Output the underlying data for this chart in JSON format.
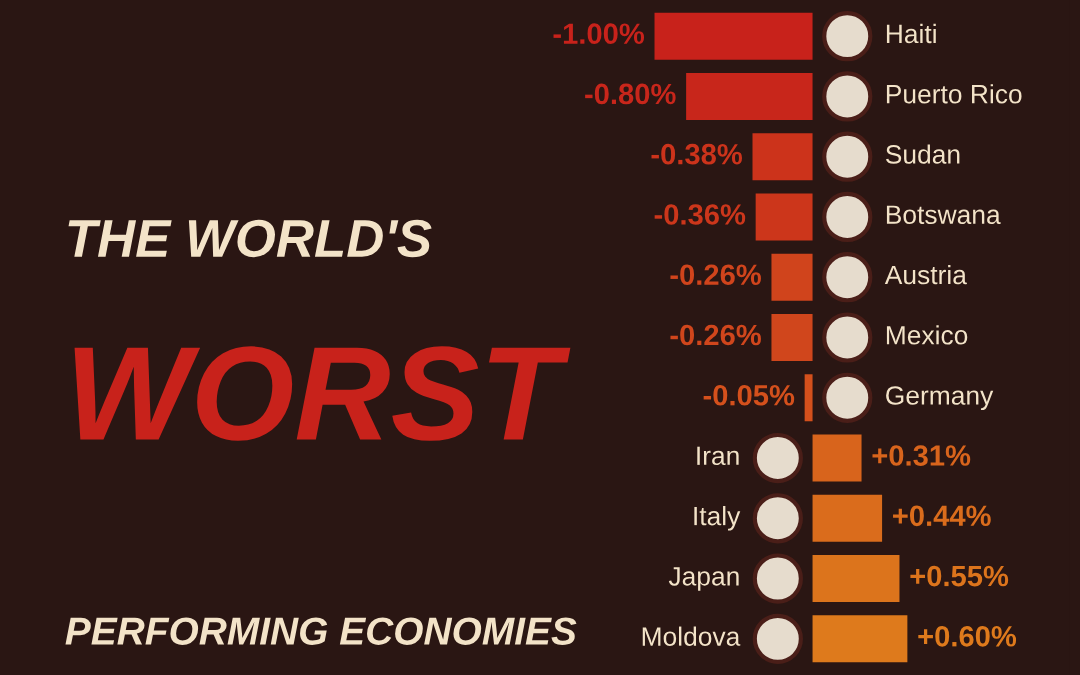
{
  "chart_data": {
    "type": "bar",
    "orientation": "horizontal",
    "title": "THE WORLD'S\nWORST\nPERFORMING ECONOMIES",
    "categories": [
      "Haiti",
      "Puerto Rico",
      "Sudan",
      "Botswana",
      "Austria",
      "Mexico",
      "Germany",
      "Iran",
      "Italy",
      "Japan",
      "Moldova"
    ],
    "values": [
      -1.0,
      -0.8,
      -0.38,
      -0.36,
      -0.26,
      -0.26,
      -0.05,
      0.31,
      0.44,
      0.55,
      0.6
    ],
    "colors": [
      "#c8221b",
      "#c8261b",
      "#cc331b",
      "#cc361b",
      "#d0441c",
      "#d0461c",
      "#d4501c",
      "#d8641c",
      "#da6c1c",
      "#dc741c",
      "#de7a1c"
    ],
    "value_labels": [
      "-1.00%",
      "-0.80%",
      "-0.38%",
      "-0.36%",
      "-0.26%",
      "-0.26%",
      "-0.05%",
      "+0.31%",
      "+0.44%",
      "+0.55%",
      "+0.60%"
    ],
    "tick_labels": false
  }
}
